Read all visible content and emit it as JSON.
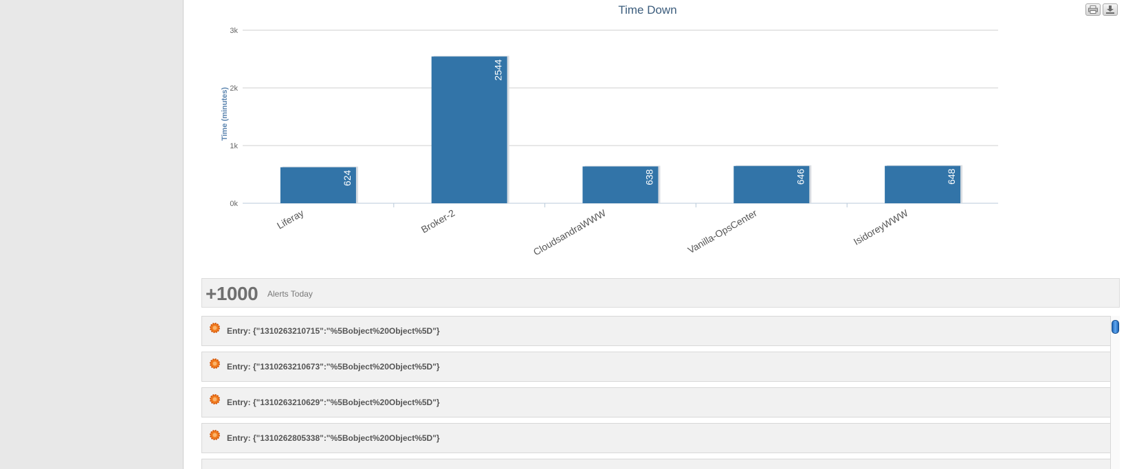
{
  "colors": {
    "bar": "#3274a8",
    "accent_icon": "#f07a1e"
  },
  "toolbar": {
    "print_icon": "printer-icon",
    "export_icon": "download-icon"
  },
  "chart_data": {
    "type": "bar",
    "title": "Time Down",
    "xlabel": "",
    "ylabel": "Time (minutes)",
    "categories": [
      "Liferay",
      "Broker-2",
      "CloudsandraWWW",
      "Vanilla-OpsCenter",
      "IsidoreyWWW"
    ],
    "values": [
      624,
      2544,
      638,
      646,
      648
    ],
    "data_labels": [
      "624",
      "2544",
      "638",
      "646",
      "648"
    ],
    "ylim": [
      0,
      3000
    ],
    "yticks": [
      0,
      1000,
      2000,
      3000
    ],
    "ytick_labels": [
      "0k",
      "1k",
      "2k",
      "3k"
    ],
    "grid": true
  },
  "alerts": {
    "count": "+1000",
    "label": "Alerts Today",
    "icon": "alert-burst-icon",
    "entries": [
      "Entry: {\"1310263210715\":\"%5Bobject%20Object%5D\"}",
      "Entry: {\"1310263210673\":\"%5Bobject%20Object%5D\"}",
      "Entry: {\"1310263210629\":\"%5Bobject%20Object%5D\"}",
      "Entry: {\"1310262805338\":\"%5Bobject%20Object%5D\"}",
      ""
    ]
  }
}
